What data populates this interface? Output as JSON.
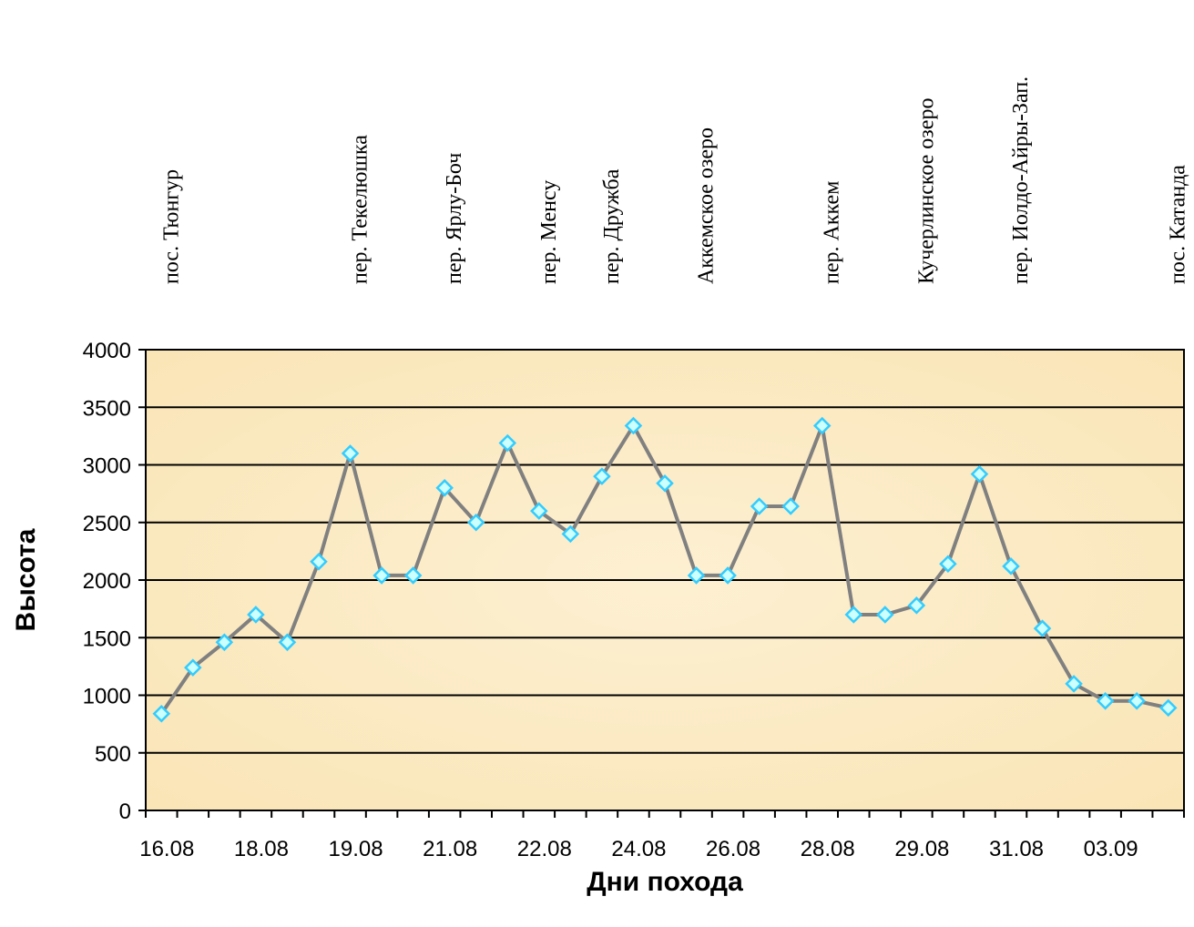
{
  "chart_data": {
    "type": "line",
    "xlabel": "Дни похода",
    "ylabel": "Высота",
    "ylim": [
      0,
      4000
    ],
    "yticks": [
      0,
      500,
      1000,
      1500,
      2000,
      2500,
      3000,
      3500,
      4000
    ],
    "grid": true,
    "legend": "none",
    "x_tick_labels": [
      "16.08",
      "18.08",
      "19.08",
      "21.08",
      "22.08",
      "24.08",
      "26.08",
      "28.08",
      "29.08",
      "31.08",
      "03.09"
    ],
    "values": [
      840,
      1240,
      1460,
      1700,
      1460,
      2160,
      3100,
      2040,
      2040,
      2800,
      2500,
      3190,
      2600,
      2400,
      2900,
      3340,
      2840,
      2040,
      2040,
      2640,
      2640,
      3340,
      1700,
      1700,
      1780,
      2140,
      2920,
      2120,
      1580,
      1100,
      950,
      950,
      890
    ],
    "place_labels": [
      "пос. Тюнгур",
      "пер. Текелюшка",
      "пер. Ярлу-Боч",
      "пер. Менсу",
      "пер. Дружба",
      "Аккемское озеро",
      "пер. Аккем",
      "Кучерлинское озеро",
      "пер. Иолдо-Айры-Зап.",
      "пос. Катанда"
    ],
    "colors": {
      "line": "#808080",
      "marker_fill": "#ccffff",
      "marker_stroke": "#33ccff",
      "plot_background": "#fcebc2",
      "grid": "#000000"
    }
  }
}
